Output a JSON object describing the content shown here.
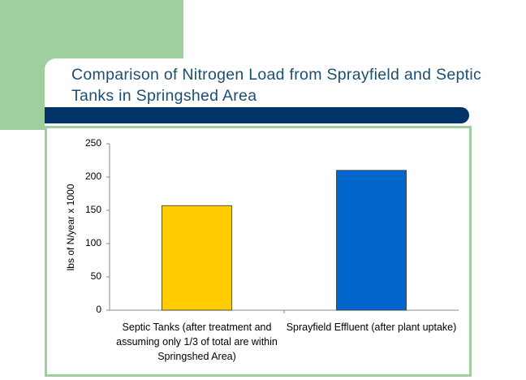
{
  "chart_data": {
    "type": "bar",
    "title": "Comparison of Nitrogen Load from Sprayfield and Septic Tanks in Springshed Area",
    "y_label": "lbs of N/year x 1000",
    "categories": [
      "Septic Tanks (after treatment and assuming only 1/3 of total are within Springshed Area)",
      "Sprayfield Effluent (after plant uptake)"
    ],
    "values": [
      157,
      210
    ],
    "colors": [
      "#ffcc00",
      "#0066cc"
    ],
    "ylim": [
      0,
      250
    ],
    "yticks": [
      0,
      50,
      100,
      150,
      200,
      250
    ],
    "grid": false
  }
}
